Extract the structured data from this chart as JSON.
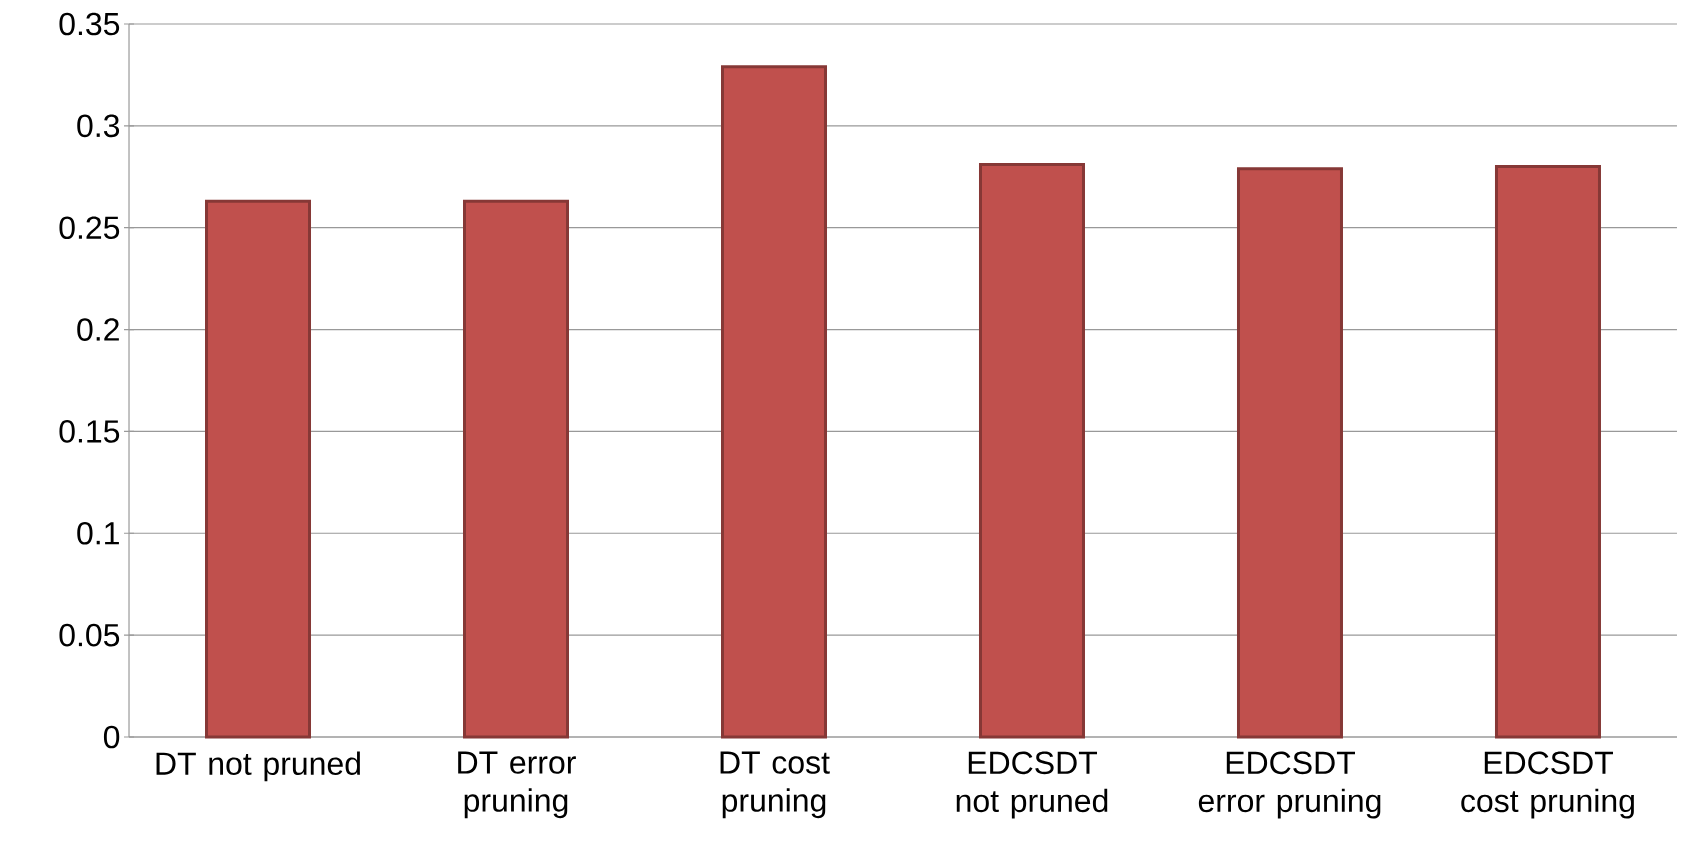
{
  "chart_data": {
    "type": "bar",
    "categories": [
      "DT not pruned",
      "DT error pruning",
      "DT cost pruning",
      "EDCSDT not pruned",
      "EDCSDT error pruning",
      "EDCSDT cost pruning"
    ],
    "values": [
      0.263,
      0.263,
      0.329,
      0.281,
      0.279,
      0.28
    ],
    "color": "#c0504d",
    "ylim": [
      0,
      0.35
    ],
    "yticks": [
      0,
      0.05,
      0.1,
      0.15,
      0.2,
      0.25,
      0.3,
      0.35
    ],
    "grid": "y"
  }
}
